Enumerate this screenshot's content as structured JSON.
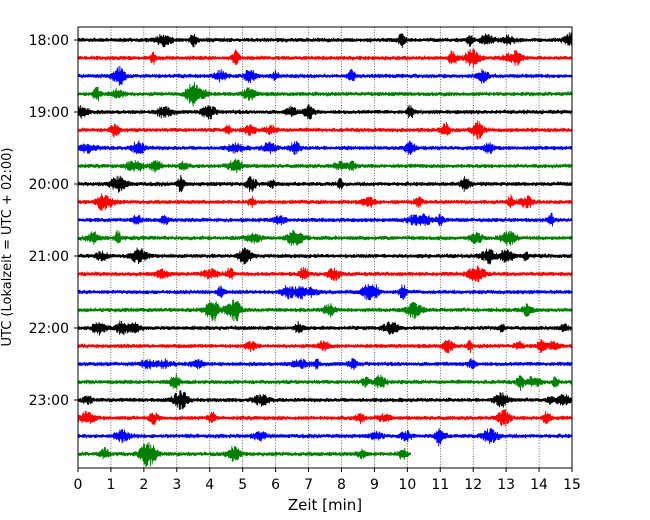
{
  "chart_data": {
    "type": "line",
    "title": "",
    "xlabel": "Zeit  [min]",
    "ylabel": "UTC (Lokalzeit = UTC + 02:00)",
    "xlim": [
      0,
      15
    ],
    "x_ticks": [
      "0",
      "1",
      "2",
      "3",
      "4",
      "5",
      "6",
      "7",
      "8",
      "9",
      "10",
      "11",
      "12",
      "13",
      "14",
      "15"
    ],
    "y_tick_labels": [
      "18:00",
      "19:00",
      "20:00",
      "21:00",
      "22:00",
      "23:00"
    ],
    "grid_vertical": true,
    "trace_colors": [
      "#000000",
      "#ff0000",
      "#0000ff",
      "#008000"
    ],
    "trace_interval_minutes": 15,
    "traces": [
      {
        "start": "18:00",
        "end_min": 15
      },
      {
        "start": "18:15",
        "end_min": 15
      },
      {
        "start": "18:30",
        "end_min": 15
      },
      {
        "start": "18:45",
        "end_min": 15
      },
      {
        "start": "19:00",
        "end_min": 15
      },
      {
        "start": "19:15",
        "end_min": 15
      },
      {
        "start": "19:30",
        "end_min": 15
      },
      {
        "start": "19:45",
        "end_min": 15
      },
      {
        "start": "20:00",
        "end_min": 15
      },
      {
        "start": "20:15",
        "end_min": 15
      },
      {
        "start": "20:30",
        "end_min": 15
      },
      {
        "start": "20:45",
        "end_min": 15
      },
      {
        "start": "21:00",
        "end_min": 15
      },
      {
        "start": "21:15",
        "end_min": 15
      },
      {
        "start": "21:30",
        "end_min": 15
      },
      {
        "start": "21:45",
        "end_min": 15
      },
      {
        "start": "22:00",
        "end_min": 15
      },
      {
        "start": "22:15",
        "end_min": 15
      },
      {
        "start": "22:30",
        "end_min": 15
      },
      {
        "start": "22:45",
        "end_min": 15
      },
      {
        "start": "23:00",
        "end_min": 15
      },
      {
        "start": "23:15",
        "end_min": 15
      },
      {
        "start": "23:30",
        "end_min": 15
      },
      {
        "start": "23:45",
        "end_min": 10.1
      }
    ]
  }
}
